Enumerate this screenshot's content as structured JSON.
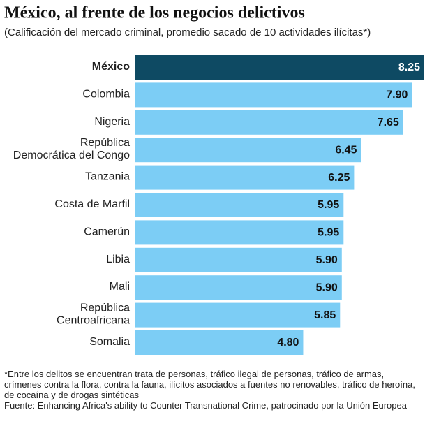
{
  "chart_data": {
    "type": "bar",
    "orientation": "horizontal",
    "title": "México, al frente de los negocios delictivos",
    "subtitle": "(Calificación del mercado criminal, promedio sacado de 10 actividades ilícitas*)",
    "categories": [
      "México",
      "Colombia",
      "Nigeria",
      "República\nDemocrática del Congo",
      "Tanzania",
      "Costa de Marfil",
      "Camerún",
      "Libia",
      "Mali",
      "República\nCentroafricana",
      "Somalia"
    ],
    "values": [
      8.25,
      7.9,
      7.65,
      6.45,
      6.25,
      5.95,
      5.95,
      5.9,
      5.9,
      5.85,
      4.8
    ],
    "value_labels": [
      "8.25",
      "7.90",
      "7.65",
      "6.45",
      "6.25",
      "5.95",
      "5.95",
      "5.90",
      "5.90",
      "5.85",
      "4.80"
    ],
    "color": "#7ccdf5",
    "highlight_color": "#0e4a63",
    "highlight_index": 0,
    "note": "*Entre los delitos se encuentran trata de personas, tráfico ilegal de personas, tráfico de armas, crímenes contra la flora, contra la fauna, ilícitos asociados a fuentes no renovables, tráfico de heroína, de cocaína y de drogas sintéticas",
    "source": "Fuente: Enhancing Africa's ability to Counter Transnational Crime, patrocinado por la Unión Europea"
  }
}
